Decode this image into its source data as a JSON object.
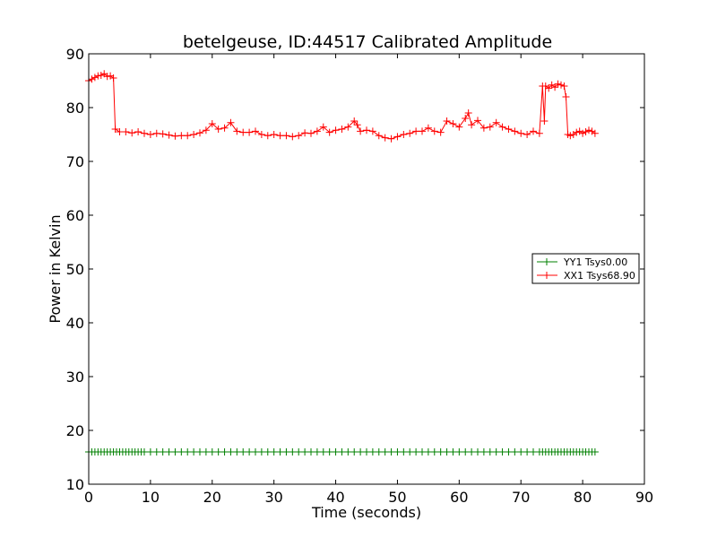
{
  "chart_data": {
    "type": "line",
    "title": "betelgeuse, ID:44517 Calibrated Amplitude",
    "xlabel": "Time (seconds)",
    "ylabel": "Power in Kelvin",
    "xlim": [
      0,
      90
    ],
    "ylim": [
      10,
      90
    ],
    "xticks": [
      0,
      10,
      20,
      30,
      40,
      50,
      60,
      70,
      80,
      90
    ],
    "yticks": [
      10,
      20,
      30,
      40,
      50,
      60,
      70,
      80,
      90
    ],
    "grid": false,
    "legend_position": "right",
    "marker": "+",
    "series": [
      {
        "name": "YY1 Tsys0.00",
        "color": "#008000",
        "x": [
          0,
          0.5,
          1,
          1.5,
          2,
          2.5,
          3,
          3.5,
          4,
          4.5,
          5,
          5.5,
          6,
          6.5,
          7,
          7.5,
          8,
          8.5,
          9,
          10,
          11,
          12,
          13,
          14,
          15,
          16,
          17,
          18,
          19,
          20,
          21,
          22,
          23,
          24,
          25,
          26,
          27,
          28,
          29,
          30,
          31,
          32,
          33,
          34,
          35,
          36,
          37,
          38,
          39,
          40,
          41,
          42,
          43,
          44,
          45,
          46,
          47,
          48,
          49,
          50,
          51,
          52,
          53,
          54,
          55,
          56,
          57,
          58,
          59,
          60,
          61,
          62,
          63,
          64,
          65,
          66,
          67,
          68,
          69,
          70,
          71,
          72,
          73,
          73.5,
          74,
          74.5,
          75,
          75.5,
          76,
          76.5,
          77,
          77.5,
          78,
          78.5,
          79,
          79.5,
          80,
          80.5,
          81,
          81.5,
          82
        ],
        "values": [
          16,
          16,
          16,
          16,
          16,
          16,
          16,
          16,
          16,
          16,
          16,
          16,
          16,
          16,
          16,
          16,
          16,
          16,
          16,
          16,
          16,
          16,
          16,
          16,
          16,
          16,
          16,
          16,
          16,
          16,
          16,
          16,
          16,
          16,
          16,
          16,
          16,
          16,
          16,
          16,
          16,
          16,
          16,
          16,
          16,
          16,
          16,
          16,
          16,
          16,
          16,
          16,
          16,
          16,
          16,
          16,
          16,
          16,
          16,
          16,
          16,
          16,
          16,
          16,
          16,
          16,
          16,
          16,
          16,
          16,
          16,
          16,
          16,
          16,
          16,
          16,
          16,
          16,
          16,
          16,
          16,
          16,
          16,
          16,
          16,
          16,
          16,
          16,
          16,
          16,
          16,
          16,
          16,
          16,
          16,
          16,
          16,
          16,
          16,
          16,
          16
        ]
      },
      {
        "name": "XX1 Tsys68.90",
        "color": "#ff0000",
        "x": [
          0,
          0.5,
          1,
          1.5,
          2,
          2.5,
          3,
          3.5,
          4,
          4.3,
          5,
          6,
          7,
          8,
          9,
          10,
          11,
          12,
          13,
          14,
          15,
          16,
          17,
          18,
          19,
          20,
          21,
          22,
          23,
          24,
          25,
          26,
          27,
          28,
          29,
          30,
          31,
          32,
          33,
          34,
          35,
          36,
          37,
          38,
          39,
          40,
          41,
          42,
          43,
          43.5,
          44,
          45,
          46,
          47,
          48,
          49,
          50,
          51,
          52,
          53,
          54,
          55,
          56,
          57,
          58,
          59,
          60,
          61,
          61.5,
          62,
          63,
          64,
          65,
          66,
          67,
          68,
          69,
          70,
          71,
          72,
          73,
          73.5,
          73.8,
          74,
          74.5,
          75,
          75.5,
          76,
          76.5,
          77,
          77.3,
          77.6,
          78,
          78.5,
          79,
          79.5,
          80,
          80.5,
          81,
          81.5,
          82
        ],
        "values": [
          85,
          85.3,
          85.6,
          85.9,
          86,
          86.3,
          85.8,
          85.9,
          85.5,
          76,
          75.5,
          75.5,
          75.3,
          75.5,
          75.2,
          75,
          75.2,
          75.1,
          74.9,
          74.7,
          74.8,
          74.8,
          75,
          75.3,
          75.8,
          77,
          76,
          76.2,
          77.2,
          75.6,
          75.4,
          75.4,
          75.6,
          75,
          74.8,
          75,
          74.8,
          74.8,
          74.6,
          74.8,
          75.3,
          75.2,
          75.6,
          76.4,
          75.4,
          75.8,
          76,
          76.4,
          77.5,
          76.8,
          75.6,
          75.8,
          75.6,
          74.8,
          74.4,
          74.2,
          74.6,
          75,
          75.2,
          75.6,
          75.6,
          76.2,
          75.6,
          75.4,
          77.5,
          77,
          76.4,
          78,
          79,
          76.8,
          77.6,
          76.2,
          76.4,
          77.2,
          76.4,
          76,
          75.6,
          75.2,
          75,
          75.6,
          75.2,
          84,
          77.5,
          84,
          83.6,
          84.2,
          83.8,
          84.4,
          84.2,
          84,
          82,
          75,
          74.8,
          75,
          75.4,
          75.6,
          75.2,
          75.5,
          75.8,
          75.6,
          75.2
        ]
      }
    ]
  }
}
